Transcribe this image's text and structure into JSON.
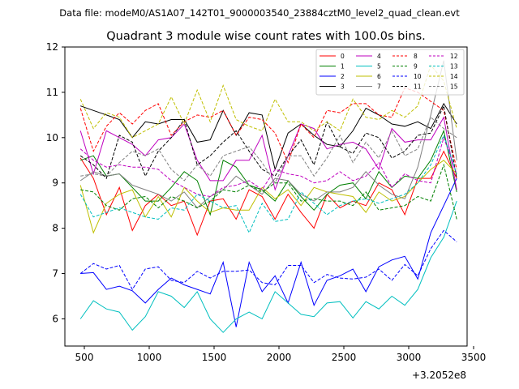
{
  "page": {
    "suptitle": "Data file: modeM0/AS1A07_142T01_9000003540_23884cztM0_level2_quad_clean.evt"
  },
  "chart_data": {
    "type": "line",
    "title": "Quadrant 3 module wise count rates with 100.0s bins.",
    "xlabel": "",
    "ylabel": "",
    "x_offset_label": "+3.2052e8",
    "xlim": [
      350,
      3450
    ],
    "ylim": [
      5.4,
      12.0
    ],
    "xticks": [
      500,
      1000,
      1500,
      2000,
      2500,
      3000,
      3500
    ],
    "yticks": [
      6,
      7,
      8,
      9,
      10,
      11,
      12
    ],
    "legend_position": "top-right",
    "x": [
      470,
      570,
      670,
      770,
      870,
      970,
      1070,
      1170,
      1270,
      1370,
      1470,
      1570,
      1670,
      1770,
      1870,
      1970,
      2070,
      2170,
      2270,
      2370,
      2470,
      2570,
      2670,
      2770,
      2870,
      2970,
      3070,
      3170,
      3270,
      3370
    ],
    "series": [
      {
        "name": "0",
        "color": "#ff0000",
        "dash": "solid",
        "values": [
          9.55,
          9.1,
          8.3,
          8.9,
          7.95,
          8.5,
          8.75,
          8.5,
          8.6,
          7.85,
          8.6,
          8.65,
          8.2,
          8.85,
          8.7,
          8.2,
          8.75,
          8.35,
          8.0,
          8.75,
          8.45,
          8.6,
          8.5,
          9.0,
          8.85,
          8.3,
          9.1,
          9.1,
          9.7,
          9.1
        ]
      },
      {
        "name": "1",
        "color": "#008000",
        "dash": "solid",
        "values": [
          9.5,
          9.6,
          9.15,
          9.2,
          8.9,
          8.6,
          8.6,
          8.9,
          9.25,
          9.05,
          8.3,
          9.5,
          9.35,
          8.95,
          8.85,
          8.6,
          9.05,
          8.7,
          8.4,
          8.75,
          8.95,
          9.0,
          8.65,
          9.25,
          8.9,
          9.15,
          9.1,
          9.5,
          10.15,
          8.8
        ]
      },
      {
        "name": "2",
        "color": "#0000ff",
        "dash": "solid",
        "values": [
          7.0,
          7.02,
          6.65,
          6.72,
          6.62,
          6.35,
          6.65,
          6.9,
          6.75,
          6.65,
          6.55,
          7.25,
          5.82,
          7.25,
          6.6,
          6.95,
          6.35,
          7.25,
          6.3,
          6.85,
          6.95,
          7.1,
          6.6,
          7.15,
          7.3,
          7.38,
          6.88,
          7.9,
          8.5,
          9.1
        ]
      },
      {
        "name": "3",
        "color": "#000000",
        "dash": "solid",
        "values": [
          10.7,
          10.6,
          10.5,
          10.4,
          10.0,
          10.35,
          10.3,
          10.4,
          10.4,
          9.9,
          9.95,
          10.6,
          10.05,
          10.55,
          10.5,
          9.3,
          10.1,
          10.3,
          10.05,
          9.85,
          9.8,
          10.15,
          10.65,
          10.5,
          10.3,
          10.25,
          10.35,
          10.2,
          10.75,
          10.3
        ]
      },
      {
        "name": "4",
        "color": "#bf00bf",
        "dash": "solid",
        "values": [
          10.15,
          9.2,
          10.15,
          10.0,
          9.85,
          9.6,
          9.95,
          10.0,
          10.3,
          9.5,
          9.05,
          9.05,
          9.5,
          9.5,
          10.05,
          8.85,
          9.6,
          10.3,
          10.2,
          9.75,
          9.85,
          9.9,
          9.75,
          9.3,
          10.2,
          9.9,
          9.95,
          9.95,
          10.45,
          8.85
        ]
      },
      {
        "name": "5",
        "color": "#00bfbf",
        "dash": "solid",
        "values": [
          6.0,
          6.4,
          6.22,
          6.15,
          5.75,
          6.05,
          6.6,
          6.5,
          6.25,
          6.6,
          6.0,
          5.7,
          6.0,
          6.15,
          6.0,
          6.6,
          6.35,
          6.1,
          6.05,
          6.35,
          6.38,
          6.02,
          6.38,
          6.22,
          6.5,
          6.3,
          6.65,
          7.35,
          7.8,
          8.6
        ]
      },
      {
        "name": "6",
        "color": "#bfbf00",
        "dash": "solid",
        "values": [
          8.95,
          7.9,
          8.55,
          8.75,
          8.85,
          8.25,
          8.7,
          8.25,
          8.9,
          8.6,
          8.35,
          8.45,
          8.4,
          8.4,
          8.9,
          8.65,
          8.85,
          8.5,
          8.9,
          8.8,
          8.75,
          8.7,
          8.35,
          8.8,
          8.6,
          8.7,
          9.0,
          9.3,
          9.5,
          9.2
        ]
      },
      {
        "name": "7",
        "color": "#808080",
        "dash": "solid",
        "values": [
          9.05,
          9.25,
          9.15,
          9.2,
          8.95,
          8.85,
          8.75,
          8.6,
          8.8,
          8.45,
          8.7,
          8.85,
          9.15,
          8.95,
          8.75,
          9.1,
          9.05,
          8.75,
          8.6,
          8.8,
          8.8,
          8.9,
          9.25,
          8.95,
          8.75,
          8.65,
          9.35,
          10.5,
          11.7,
          9.5
        ]
      },
      {
        "name": "8",
        "color": "#ff0000",
        "dash": "dashed",
        "values": [
          10.65,
          9.7,
          10.25,
          10.55,
          10.3,
          10.6,
          10.75,
          10.05,
          10.35,
          10.5,
          10.45,
          10.6,
          10.05,
          10.45,
          10.4,
          10.1,
          9.45,
          10.3,
          10.0,
          10.6,
          10.55,
          10.75,
          10.75,
          10.5,
          10.45,
          11.1,
          11.0,
          10.8,
          10.6,
          9.3
        ]
      },
      {
        "name": "9",
        "color": "#008000",
        "dash": "dashed",
        "values": [
          8.85,
          8.8,
          8.5,
          8.4,
          8.65,
          8.7,
          8.45,
          8.7,
          8.6,
          8.45,
          8.6,
          8.85,
          8.8,
          8.95,
          8.8,
          9.0,
          9.0,
          8.6,
          8.65,
          8.6,
          8.6,
          8.5,
          8.8,
          8.4,
          8.45,
          8.5,
          8.7,
          8.6,
          9.4,
          8.2
        ]
      },
      {
        "name": "10",
        "color": "#0000ff",
        "dash": "dashed",
        "values": [
          7.0,
          7.22,
          7.1,
          7.18,
          6.65,
          7.1,
          7.15,
          6.85,
          6.8,
          7.05,
          6.9,
          7.05,
          7.05,
          7.08,
          6.8,
          6.75,
          7.18,
          7.18,
          6.8,
          6.98,
          6.9,
          6.88,
          6.92,
          7.1,
          6.85,
          7.2,
          6.95,
          7.55,
          7.95,
          7.7
        ]
      },
      {
        "name": "11",
        "color": "#000000",
        "dash": "dashed",
        "values": [
          9.6,
          9.4,
          9.1,
          10.05,
          9.9,
          9.15,
          9.7,
          10.0,
          10.4,
          9.4,
          9.6,
          9.9,
          10.15,
          9.7,
          9.3,
          9.15,
          9.6,
          9.95,
          9.4,
          10.35,
          9.8,
          9.65,
          10.1,
          10.0,
          9.55,
          9.7,
          10.05,
          10.1,
          10.7,
          9.1
        ]
      },
      {
        "name": "12",
        "color": "#bf00bf",
        "dash": "dashed",
        "values": [
          9.75,
          9.5,
          9.35,
          9.4,
          9.35,
          9.35,
          9.3,
          9.05,
          8.9,
          8.75,
          8.7,
          8.9,
          8.95,
          9.05,
          8.85,
          9.3,
          9.2,
          9.15,
          9.0,
          9.05,
          9.25,
          9.05,
          9.15,
          9.45,
          8.9,
          9.2,
          9.05,
          9.0,
          10.0,
          9.2
        ]
      },
      {
        "name": "13",
        "color": "#00bfbf",
        "dash": "dashed",
        "values": [
          8.75,
          8.25,
          8.35,
          8.45,
          8.35,
          8.25,
          8.2,
          8.45,
          8.4,
          8.75,
          8.6,
          8.45,
          8.5,
          7.9,
          8.55,
          8.15,
          8.2,
          8.8,
          8.55,
          8.3,
          8.5,
          8.6,
          8.65,
          8.55,
          8.65,
          8.75,
          9.0,
          9.4,
          10.05,
          9.2
        ]
      },
      {
        "name": "14",
        "color": "#bfbf00",
        "dash": "dashed",
        "values": [
          10.85,
          10.2,
          10.55,
          10.45,
          10.0,
          10.15,
          10.3,
          10.9,
          10.3,
          11.05,
          10.35,
          11.15,
          10.4,
          10.25,
          10.15,
          10.85,
          10.35,
          10.35,
          10.15,
          10.35,
          10.15,
          10.85,
          10.45,
          10.4,
          10.6,
          10.45,
          10.7,
          11.6,
          11.25,
          10.2
        ]
      },
      {
        "name": "15",
        "color": "#808080",
        "dash": "dashed",
        "values": [
          9.15,
          9.2,
          9.15,
          9.45,
          9.7,
          9.6,
          9.75,
          9.3,
          9.05,
          9.4,
          9.15,
          9.6,
          9.7,
          9.8,
          9.45,
          9.0,
          9.6,
          9.6,
          9.15,
          9.55,
          10.05,
          9.45,
          9.9,
          9.55,
          10.15,
          9.6,
          9.75,
          10.45,
          10.2,
          10.0
        ]
      }
    ]
  }
}
